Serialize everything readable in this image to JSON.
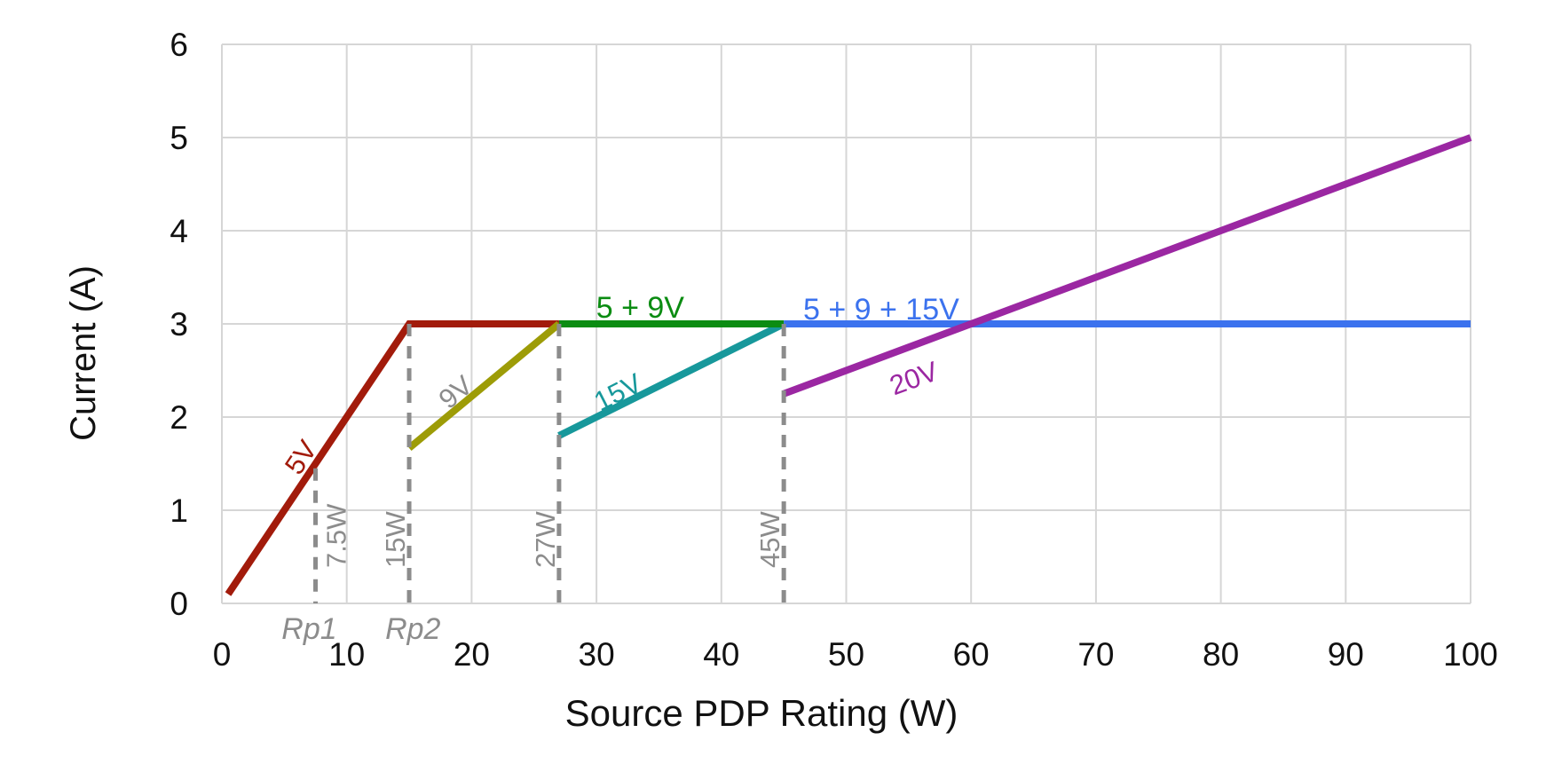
{
  "chart_data": {
    "type": "line",
    "title": "",
    "xlabel": "Source PDP Rating (W)",
    "ylabel": "Current (A)",
    "xlim": [
      0,
      100
    ],
    "ylim": [
      0,
      6
    ],
    "x_ticks": [
      0,
      10,
      20,
      30,
      40,
      50,
      60,
      70,
      80,
      90,
      100
    ],
    "y_ticks": [
      0,
      1,
      2,
      3,
      4,
      5,
      6
    ],
    "grid": true,
    "legend_position": "none",
    "colors": {
      "grid": "#D6D6D6",
      "marker": "#8C8C8C",
      "text": "#111111"
    },
    "series": [
      {
        "name": "5V",
        "color": "#A21B0B",
        "points": [
          [
            0.5,
            0.1
          ],
          [
            15,
            3
          ],
          [
            27,
            3
          ]
        ],
        "label": {
          "text": "5V",
          "x": 6.3,
          "y": 1.57,
          "rotation": -56,
          "color": "#A21B0B"
        }
      },
      {
        "name": "9V",
        "color": "#9D9C07",
        "points": [
          [
            15,
            1.667
          ],
          [
            27,
            3
          ]
        ],
        "label": {
          "text": "9V",
          "x": 18.7,
          "y": 2.27,
          "rotation": -40,
          "color": "#8C8C8C"
        }
      },
      {
        "name": "15V",
        "color": "#17989B",
        "points": [
          [
            27,
            1.8
          ],
          [
            45,
            3
          ]
        ],
        "label": {
          "text": "15V",
          "x": 31.7,
          "y": 2.27,
          "rotation": -27,
          "color": "#17989B"
        }
      },
      {
        "name": "5 + 9V",
        "color": "#0B8C12",
        "points": [
          [
            27,
            3
          ],
          [
            45,
            3
          ]
        ],
        "label": {
          "text": "5 + 9V",
          "x": 33.5,
          "y": 3.18,
          "rotation": 0,
          "color": "#0B8C12"
        }
      },
      {
        "name": "5 + 9 + 15V",
        "color": "#3B72EE",
        "points": [
          [
            45,
            3
          ],
          [
            100,
            3
          ]
        ],
        "label": {
          "text": "5 + 9 + 15V",
          "x": 52.8,
          "y": 3.16,
          "rotation": 0,
          "color": "#3B72EE"
        }
      },
      {
        "name": "20V",
        "color": "#9B27A2",
        "points": [
          [
            45,
            2.25
          ],
          [
            100,
            5
          ]
        ],
        "label": {
          "text": "20V",
          "x": 55.4,
          "y": 2.42,
          "rotation": -20,
          "color": "#9B27A2"
        }
      }
    ],
    "threshold_markers": [
      {
        "w": 7.5,
        "from": 0,
        "to": 1.45,
        "label": "7.5W",
        "label_side": "right"
      },
      {
        "w": 15,
        "from": 0,
        "to": 3,
        "label": "15W",
        "label_side": "left"
      },
      {
        "w": 27,
        "from": 0,
        "to": 3,
        "label": "27W",
        "label_side": "left"
      },
      {
        "w": 45,
        "from": 0,
        "to": 3,
        "label": "45W",
        "label_side": "left"
      }
    ],
    "axis_annotations": [
      {
        "text": "Rp1",
        "x": 7.0
      },
      {
        "text": "Rp2",
        "x": 15.3
      }
    ]
  }
}
